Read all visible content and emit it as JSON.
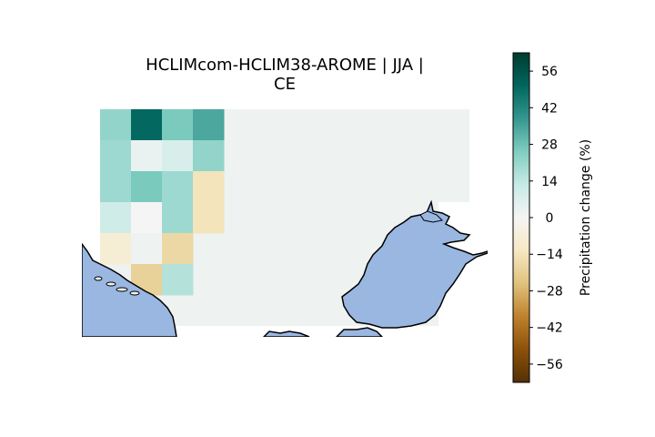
{
  "title_line1": "HCLIMcom-HCLIM38-AROME | JJA |",
  "title_line2": "CE",
  "colorbar": {
    "label": "Precipitation change (%)",
    "min": -63,
    "max": 63,
    "ticks": [
      "56",
      "42",
      "28",
      "14",
      "0",
      "−14",
      "−28",
      "−42",
      "−56"
    ],
    "tick_values": [
      56,
      42,
      28,
      14,
      0,
      -14,
      -28,
      -42,
      -56
    ],
    "colormap": "BrBG",
    "colormap_stops": [
      "#543005",
      "#8c510a",
      "#bf812d",
      "#dfc27d",
      "#f6e8c3",
      "#f5f5f5",
      "#c7eae5",
      "#80cdc1",
      "#35978f",
      "#01665e",
      "#003c30"
    ]
  },
  "map": {
    "sea_color": "#9ab7e1",
    "coast_color": "#000000",
    "background_cell_color": "#eef2f1",
    "grid_values": [
      [
        22,
        50,
        26,
        34
      ],
      [
        20,
        3,
        8,
        22
      ],
      [
        20,
        26,
        20,
        -14
      ],
      [
        10,
        0,
        20,
        -14
      ],
      [
        -8,
        2,
        -18
      ],
      [
        null,
        -20,
        16
      ]
    ]
  }
}
